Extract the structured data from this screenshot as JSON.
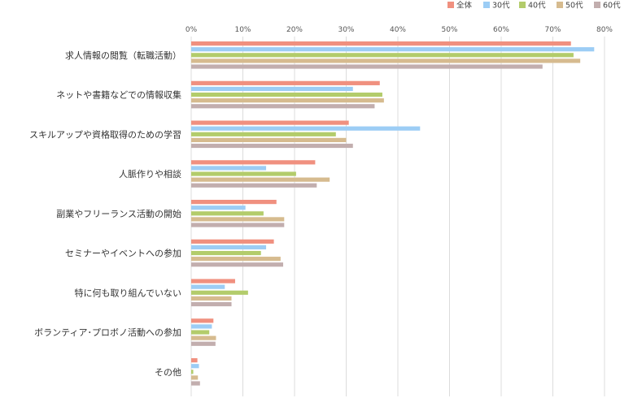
{
  "chart_data": {
    "type": "bar",
    "orientation": "horizontal",
    "categories": [
      "求人情報の閲覧（転職活動）",
      "ネットや書籍などでの情報収集",
      "スキルアップや資格取得のための学習",
      "人脈作りや相談",
      "副業やフリーランス活動の開始",
      "セミナーやイベントへの参加",
      "特に何も取り組んでいない",
      "ボランティア･プロボノ活動への参加",
      "その他"
    ],
    "series": [
      {
        "name": "全体",
        "color": "#f0907f",
        "values": [
          73.5,
          36.5,
          30.5,
          24.0,
          16.5,
          16.0,
          8.5,
          4.3,
          1.2
        ]
      },
      {
        "name": "30代",
        "color": "#9ccdf5",
        "values": [
          78.0,
          31.3,
          44.3,
          14.5,
          10.5,
          14.5,
          6.5,
          4.0,
          1.5
        ]
      },
      {
        "name": "40代",
        "color": "#b3cc6b",
        "values": [
          74.0,
          37.0,
          28.0,
          20.3,
          14.0,
          13.5,
          11.0,
          3.5,
          0.4
        ]
      },
      {
        "name": "50代",
        "color": "#d6bb8f",
        "values": [
          75.3,
          37.3,
          30.0,
          26.8,
          18.0,
          17.3,
          7.8,
          4.8,
          1.3
        ]
      },
      {
        "name": "60代",
        "color": "#c2aeae",
        "values": [
          68.0,
          35.5,
          31.3,
          24.3,
          18.0,
          17.8,
          7.8,
          4.7,
          1.7
        ]
      }
    ],
    "xlim": [
      0,
      80
    ],
    "x_ticks": [
      "0%",
      "10%",
      "20%",
      "30%",
      "40%",
      "50%",
      "60%",
      "70%",
      "80%"
    ],
    "grid": "vertical",
    "legend_position": "top-right"
  }
}
